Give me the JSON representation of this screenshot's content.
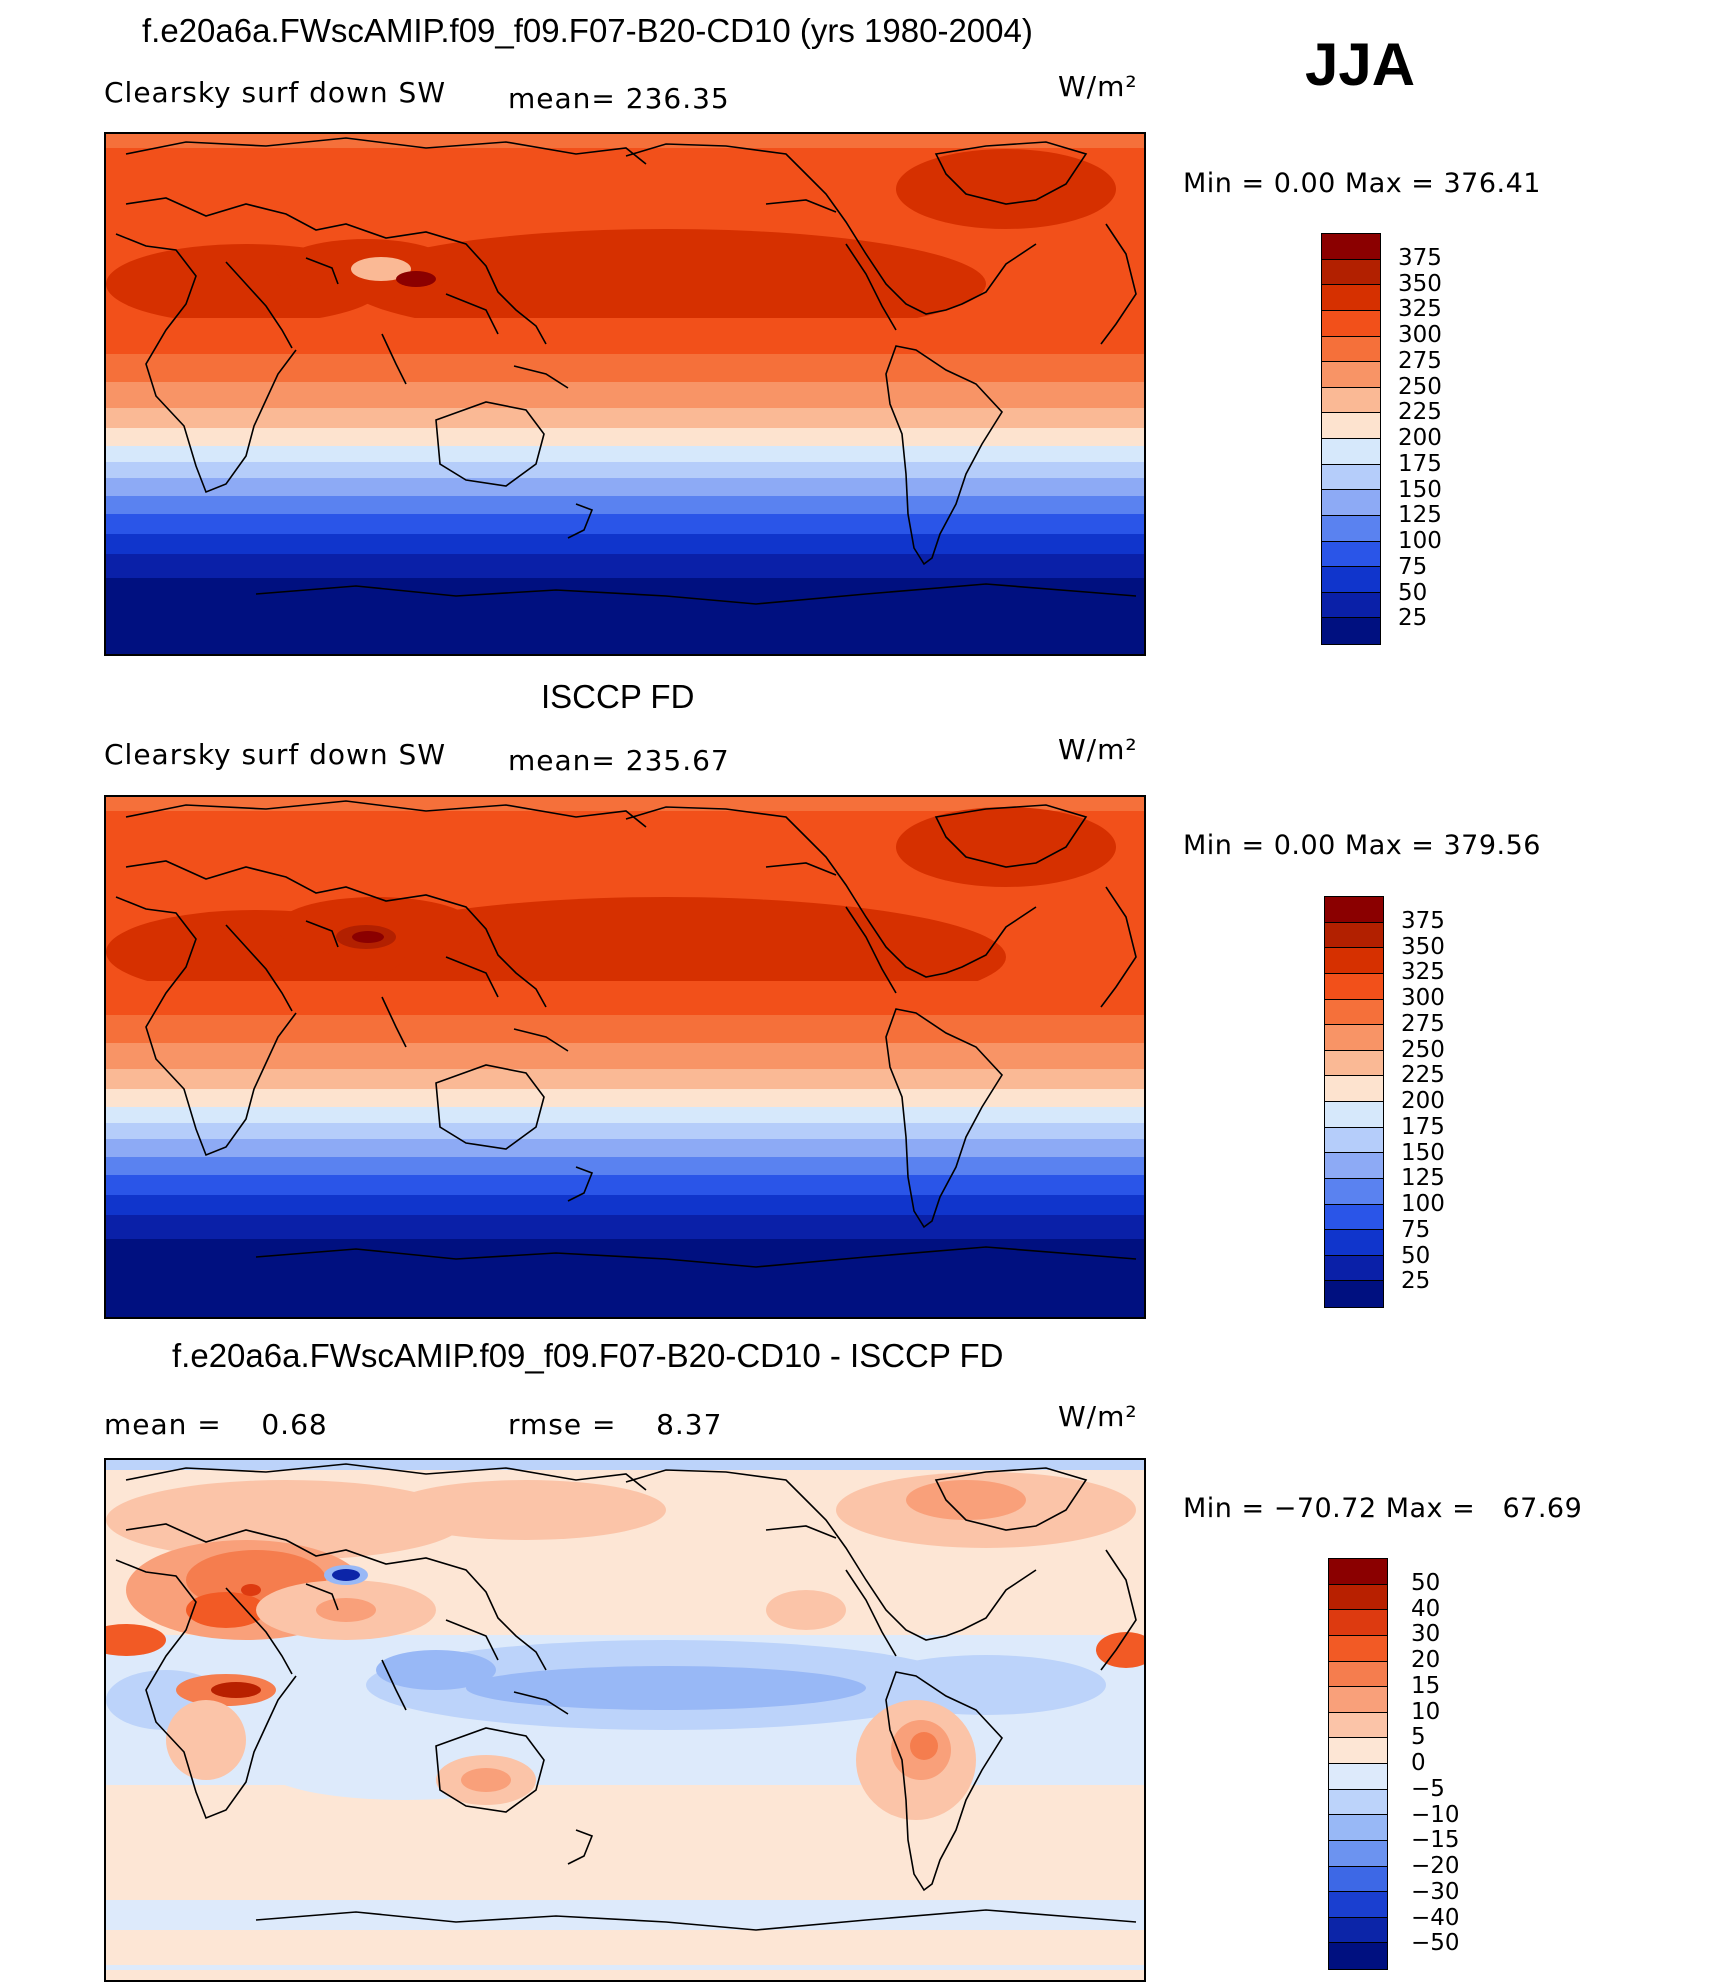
{
  "figure": {
    "season": "JJA"
  },
  "panels": [
    {
      "id": "model",
      "title": "f.e20a6a.FWscAMIP.f09_f09.F07-B20-CD10 (yrs 1980-2004)",
      "left_label": "Clearsky surf down SW",
      "mid_label": "mean= 236.35",
      "units": "W/m²",
      "minmax": "Min =    0.00 Max = 376.41"
    },
    {
      "id": "obs",
      "title": "ISCCP FD",
      "left_label": "Clearsky surf down SW",
      "mid_label": "mean= 235.67",
      "units": "W/m²",
      "minmax": "Min =    0.00 Max = 379.56"
    },
    {
      "id": "diff",
      "title": "f.e20a6a.FWscAMIP.f09_f09.F07-B20-CD10 - ISCCP FD",
      "left_label": "mean =    0.68",
      "mid_label": "rmse =    8.37",
      "units": "W/m²",
      "minmax": "Min = −70.72 Max =   67.69"
    }
  ],
  "colorbars": {
    "absolute": {
      "labels": [
        "375",
        "350",
        "325",
        "300",
        "275",
        "250",
        "225",
        "200",
        "175",
        "150",
        "125",
        "100",
        "75",
        "50",
        "25"
      ],
      "colors": [
        "#8b0000",
        "#b22000",
        "#d63000",
        "#f2501a",
        "#f5703a",
        "#f89466",
        "#fab995",
        "#fde3cf",
        "#d6e8fb",
        "#b5cdfa",
        "#8daaf5",
        "#5a82f0",
        "#2a55e8",
        "#1035cc",
        "#0a20a8",
        "#001080"
      ]
    },
    "difference": {
      "labels": [
        "50",
        "40",
        "30",
        "20",
        "15",
        "10",
        "5",
        "0",
        "−5",
        "−10",
        "−15",
        "−20",
        "−30",
        "−40",
        "−50"
      ],
      "colors": [
        "#8b0000",
        "#b82000",
        "#dd3a10",
        "#f25a25",
        "#f57d4e",
        "#f9a07a",
        "#fbc4a8",
        "#fde6d5",
        "#ddeafb",
        "#bcd3fa",
        "#98b8f6",
        "#6c93f0",
        "#3d68e6",
        "#1a3fd0",
        "#0c25a8",
        "#001080"
      ]
    }
  }
}
